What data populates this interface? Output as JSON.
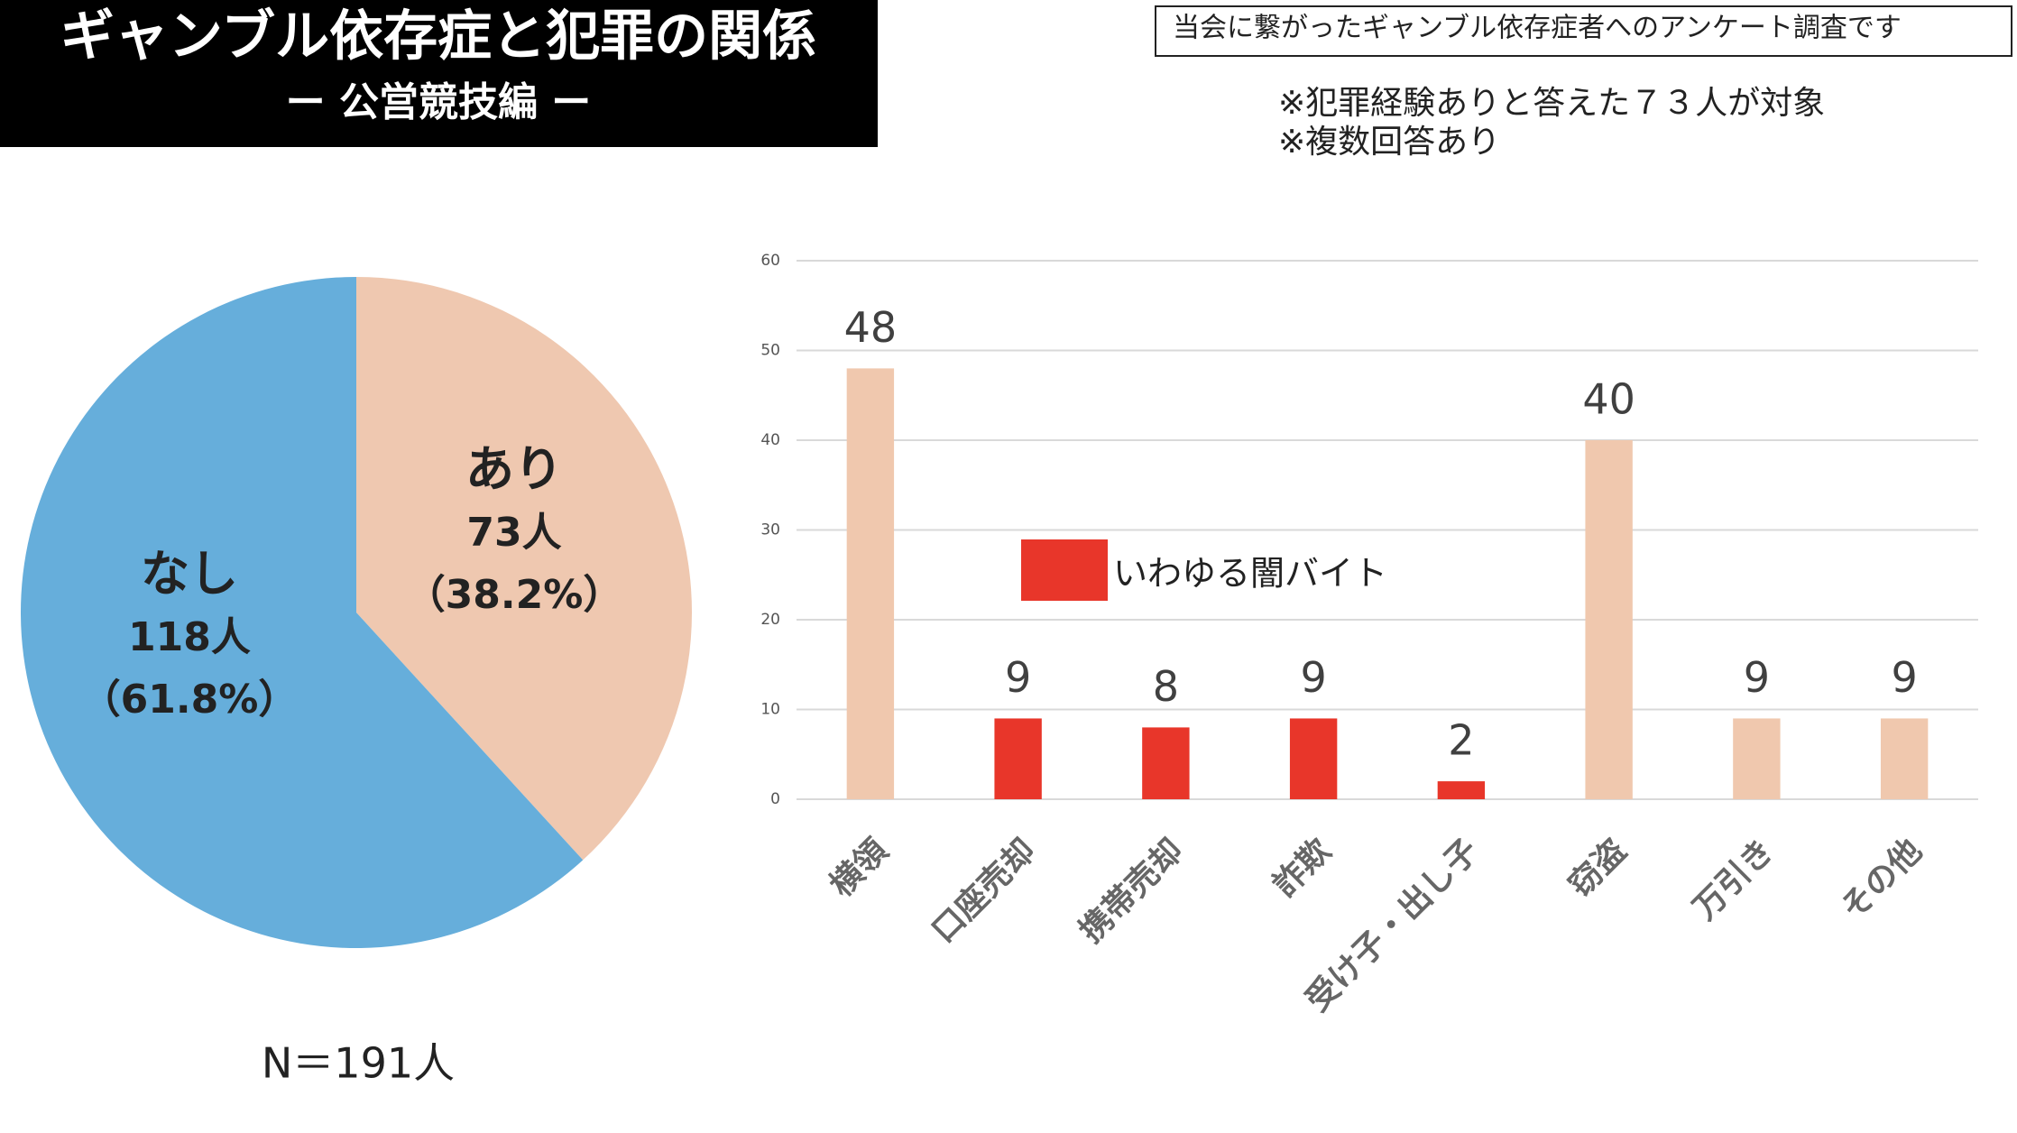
{
  "header": {
    "title": "ギャンブル依存症と犯罪の関係",
    "subtitle": "ー 公営競技編 ー",
    "survey_note": "当会に繋がったギャンブル依存症者へのアンケート調査です",
    "notes": [
      "※犯罪経験ありと答えた７３人が対象",
      "※複数回答あり"
    ]
  },
  "chart_data": [
    {
      "type": "pie",
      "categories": [
        "あり",
        "なし"
      ],
      "values": [
        38.2,
        61.8
      ],
      "value_labels": [
        "（38.2%）",
        "（61.8%）"
      ],
      "counts": [
        73,
        118
      ],
      "count_labels": [
        "73人",
        "118人"
      ],
      "colors": [
        "#efc8b0",
        "#66aedb"
      ],
      "total_label": "N＝191人"
    },
    {
      "type": "bar",
      "categories": [
        "横領",
        "口座売却",
        "携帯売却",
        "詐欺",
        "受け子・出し子",
        "窃盗",
        "万引き",
        "その他"
      ],
      "values": [
        48,
        9,
        8,
        9,
        2,
        40,
        9,
        9
      ],
      "colors": [
        "#f0c8ae",
        "#e8362a",
        "#e8362a",
        "#e8362a",
        "#e8362a",
        "#f0c8ae",
        "#f0c8ae",
        "#f0c8ae"
      ],
      "legend": {
        "name": "いわゆる闇バイト",
        "color": "#e8362a"
      },
      "ylim": [
        0,
        60
      ],
      "yticks": [
        0,
        10,
        20,
        30,
        40,
        50,
        60
      ],
      "grid": true
    }
  ]
}
